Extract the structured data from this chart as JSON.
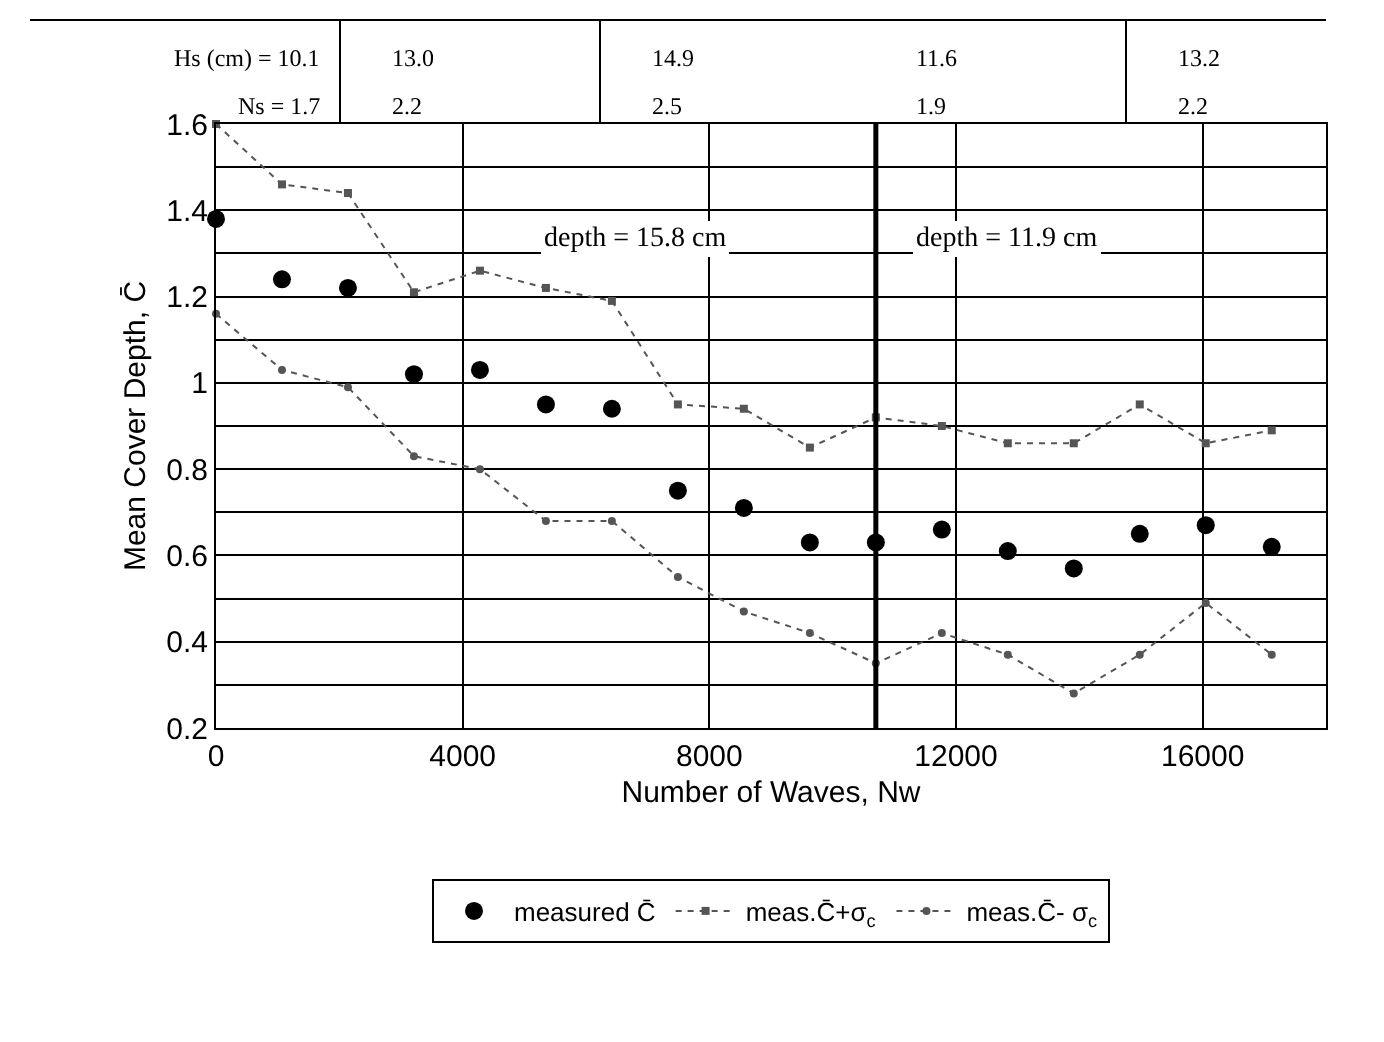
{
  "chart_data": {
    "type": "line",
    "xlabel": "Number of Waves, Nw",
    "ylabel": "Mean Cover Depth, C̄",
    "x": [
      0,
      1070,
      2140,
      3210,
      4280,
      5350,
      6420,
      7490,
      8560,
      9630,
      10700,
      11770,
      12840,
      13910,
      14980,
      16050,
      17120
    ],
    "series": [
      {
        "name": "measured C̄",
        "type": "scatter",
        "marker": "circle",
        "color": "#000000",
        "values": [
          1.38,
          1.24,
          1.22,
          1.02,
          1.03,
          0.95,
          0.94,
          0.75,
          0.71,
          0.63,
          0.63,
          0.66,
          0.61,
          0.57,
          0.65,
          0.67,
          0.62
        ]
      },
      {
        "name": "meas.C̄+σ$_{c}$",
        "marker": "square",
        "line_style": "dotted",
        "color": "#555555",
        "values": [
          1.6,
          1.46,
          1.44,
          1.21,
          1.26,
          1.22,
          1.19,
          0.95,
          0.94,
          0.85,
          0.92,
          0.9,
          0.86,
          0.86,
          0.95,
          0.86,
          0.89
        ]
      },
      {
        "name": "meas.C̄- σ$_{c}$",
        "marker": "circle",
        "line_style": "dotted",
        "color": "#555555",
        "values": [
          1.16,
          1.03,
          0.99,
          0.83,
          0.8,
          0.68,
          0.68,
          0.55,
          0.47,
          0.42,
          0.35,
          0.42,
          0.37,
          0.28,
          0.37,
          0.49,
          0.37
        ]
      }
    ],
    "xlim": [
      0,
      18000
    ],
    "xticks": [
      0,
      4000,
      8000,
      12000,
      16000
    ],
    "ylim": [
      0.2,
      1.6
    ],
    "yticks": [
      0.2,
      {
        "value": 0.3,
        "label": null
      },
      0.4,
      {
        "value": 0.5,
        "label": null
      },
      0.6,
      {
        "value": 0.7,
        "label": null
      },
      0.8,
      {
        "value": 0.9,
        "label": null
      },
      {
        "value": 1.0,
        "label": "1"
      },
      {
        "value": 1.1,
        "label": null
      },
      1.2,
      {
        "value": 1.3,
        "label": null
      },
      1.4,
      {
        "value": 1.5,
        "label": null
      },
      1.6
    ],
    "grid": true,
    "legend": "bottom",
    "ref_lines": [
      {
        "axis": "x",
        "value": 10700,
        "color": "#000000"
      }
    ],
    "annotations": [
      "depth = 15.8 cm",
      "depth = 11.9 cm",
      "Hs (cm) = 10.1",
      "13.0",
      "14.9",
      "11.6",
      "13.2",
      "Ns = 1.7",
      "2.2",
      "2.5",
      "1.9",
      "2.2"
    ]
  }
}
